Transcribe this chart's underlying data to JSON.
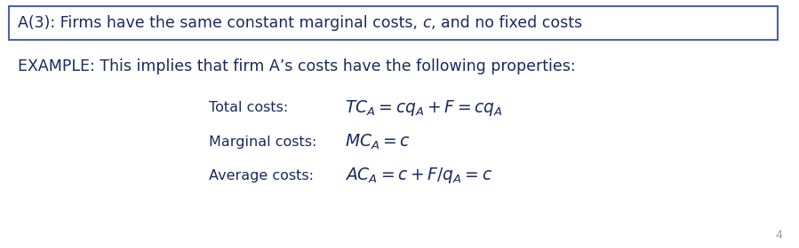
{
  "box_title_part1": "A(3): Firms have the same constant marginal costs, ",
  "box_title_italic": "c",
  "box_title_part2": ", and no fixed costs",
  "example_line": "EXAMPLE: This implies that firm A’s costs have the following properties:",
  "label1": "Total costs:",
  "label2": "Marginal costs:",
  "label3": "Average costs:",
  "math1": "$TC_A = cq_A + F = cq_A$",
  "math2": "$MC_A = c$",
  "math3": "$AC_A = c + F/q_A = c$",
  "box_edge_color": "#4466aa",
  "text_color": "#1a2a5e",
  "bg_color": "#ffffff",
  "page_num": "4",
  "title_fontsize": 12.5,
  "example_fontsize": 12.5,
  "label_fontsize": 11.5,
  "math_fontsize": 13.5
}
